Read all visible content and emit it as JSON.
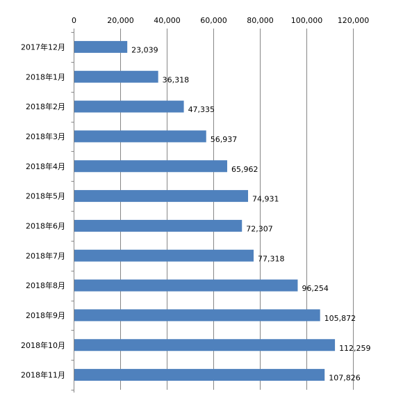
{
  "chart_data": {
    "type": "bar",
    "orientation": "horizontal",
    "title": "",
    "xlabel": "",
    "ylabel": "",
    "xlim": [
      0,
      120000
    ],
    "ticks": [
      0,
      20000,
      40000,
      60000,
      80000,
      100000,
      120000
    ],
    "tick_labels": [
      "0",
      "20,000",
      "40,000",
      "60,000",
      "80,000",
      "100,000",
      "120,000"
    ],
    "axis_position": "top",
    "grid": true,
    "legend": "none",
    "bar_color": "#4F81BD",
    "grid_color": "#868686",
    "categories": [
      "2017年12月",
      "2018年1月",
      "2018年2月",
      "2018年3月",
      "2018年4月",
      "2018年5月",
      "2018年6月",
      "2018年7月",
      "2018年8月",
      "2018年9月",
      "2018年10月",
      "2018年11月"
    ],
    "values": [
      23039,
      36318,
      47335,
      56937,
      65962,
      74931,
      72307,
      77318,
      96254,
      105872,
      112259,
      107826
    ],
    "data_labels": [
      "23,039",
      "36,318",
      "47,335",
      "56,937",
      "65,962",
      "74,931",
      "72,307",
      "77,318",
      "96,254",
      "105,872",
      "112,259",
      "107,826"
    ]
  }
}
